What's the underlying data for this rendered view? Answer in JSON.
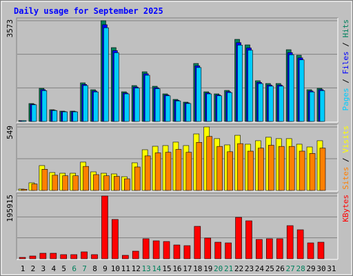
{
  "chart_data": [
    {
      "type": "bar",
      "title": "Daily usage for September 2025",
      "ylim": [
        0,
        3573
      ],
      "yticks": [
        3573
      ],
      "grid_divisions": 3,
      "legend_separator": " / ",
      "series": [
        {
          "name": "Hits",
          "color": "#00805c",
          "values": [
            30,
            636,
            1175,
            416,
            367,
            367,
            1370,
            1126,
            3573,
            2619,
            1052,
            1273,
            1762,
            1248,
            979,
            783,
            685,
            2056,
            1052,
            979,
            1101,
            2912,
            2716,
            1444,
            1346,
            1346,
            2545,
            2349,
            1126,
            1175,
            null
          ]
        },
        {
          "name": "Files",
          "color": "#0000ff",
          "values": [
            29,
            611,
            1128,
            399,
            352,
            352,
            1315,
            1081,
            3430,
            2514,
            1010,
            1222,
            1692,
            1198,
            940,
            752,
            658,
            1974,
            1010,
            940,
            1057,
            2796,
            2607,
            1386,
            1292,
            1292,
            2443,
            2255,
            1081,
            1128,
            null
          ]
        },
        {
          "name": "Pages",
          "color": "#00ccff",
          "values": [
            28,
            591,
            1093,
            387,
            341,
            341,
            1274,
            1047,
            3323,
            2436,
            978,
            1184,
            1639,
            1161,
            910,
            728,
            637,
            1912,
            978,
            910,
            1024,
            2708,
            2526,
            1343,
            1252,
            1252,
            2367,
            2185,
            1047,
            1093,
            null
          ]
        }
      ]
    },
    {
      "type": "bar",
      "ylim": [
        0,
        549
      ],
      "yticks": [
        549
      ],
      "grid_divisions": 2,
      "legend_separator": " / ",
      "series": [
        {
          "name": "Visits",
          "color": "#ffff00",
          "values": [
            12,
            66,
            215,
            155,
            149,
            149,
            245,
            161,
            149,
            143,
            119,
            239,
            352,
            382,
            388,
            418,
            388,
            489,
            549,
            448,
            394,
            477,
            400,
            430,
            460,
            448,
            448,
            400,
            376,
            430,
            null
          ]
        },
        {
          "name": "Sites",
          "color": "#ff8000",
          "values": [
            10,
            56,
            183,
            132,
            127,
            127,
            208,
            137,
            127,
            122,
            101,
            203,
            299,
            325,
            330,
            355,
            330,
            416,
            467,
            381,
            335,
            405,
            340,
            366,
            391,
            381,
            381,
            340,
            320,
            366,
            null
          ]
        }
      ]
    },
    {
      "type": "bar",
      "ylim": [
        0,
        195915
      ],
      "yticks": [
        195915
      ],
      "grid_divisions": 3,
      "categories": [
        "1",
        "2",
        "3",
        "4",
        "5",
        "6",
        "7",
        "8",
        "9",
        "10",
        "11",
        "12",
        "13",
        "14",
        "15",
        "16",
        "17",
        "18",
        "19",
        "20",
        "21",
        "22",
        "23",
        "24",
        "25",
        "26",
        "27",
        "28",
        "29",
        "30",
        "31"
      ],
      "category_color": "#000000",
      "highlight_color": "#00805c",
      "highlight_indices": [
        5,
        6,
        12,
        13,
        19,
        20,
        26,
        27
      ],
      "series": [
        {
          "name": "KBytes",
          "color": "#ff0000",
          "values": [
            4306,
            8611,
            17223,
            17223,
            12917,
            12917,
            21529,
            12917,
            195915,
            122718,
            10765,
            23683,
            62434,
            55976,
            53823,
            43059,
            40906,
            101188,
            64588,
            51670,
            49517,
            129177,
            118412,
            60282,
            62434,
            62434,
            103341,
            90423,
            49517,
            51670,
            null
          ]
        }
      ]
    }
  ]
}
